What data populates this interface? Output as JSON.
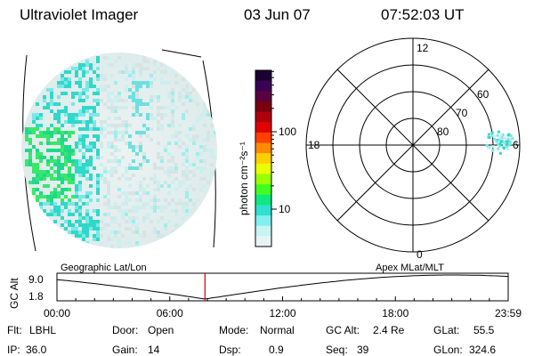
{
  "header": {
    "title": "Ultraviolet Imager",
    "date": "03 Jun 07",
    "time": "07:52:03 UT"
  },
  "colorbar": {
    "unit": "photon cm⁻²s⁻¹",
    "ticks": [
      "100",
      "10"
    ],
    "colors": [
      "#1a0033",
      "#3a0055",
      "#5c0040",
      "#7a0010",
      "#b00010",
      "#e00000",
      "#ff4000",
      "#ff8a00",
      "#ffd000",
      "#e8ff00",
      "#9aff00",
      "#40ff20",
      "#10e880",
      "#30e0d0",
      "#80f0f0",
      "#c8f4f4",
      "#e8f4f4"
    ]
  },
  "polar": {
    "labels": {
      "noon": "12",
      "midnight": "0",
      "dusk": "18",
      "dawn": "6"
    },
    "lat_labels": [
      "60",
      "70",
      "80"
    ]
  },
  "timeline": {
    "left_label": "Geographic Lat/Lon",
    "right_label": "Apex  MLat/MLT",
    "axis_title": "GC Alt",
    "y_max": "9.0",
    "y_min": "1.8",
    "x_ticks": [
      "00:00",
      "06:00",
      "12:00",
      "18:00",
      "23:59"
    ],
    "current_time_fraction": 0.328,
    "marker_color": "#d00000"
  },
  "status": {
    "rows": [
      [
        {
          "label": "Flt:",
          "value": "LBHL"
        },
        {
          "label": "Door:",
          "value": "Open"
        },
        {
          "label": "Mode:",
          "value": "Normal"
        },
        {
          "label": "GC Alt:",
          "value": "2.4 Re"
        },
        {
          "label": "GLat:",
          "value": "55.5"
        }
      ],
      [
        {
          "label": "IP:",
          "value": "36.0"
        },
        {
          "label": "Gain:",
          "value": "14"
        },
        {
          "label": "Dsp:",
          "value": "0.9"
        },
        {
          "label": "Seq:",
          "value": "39"
        },
        {
          "label": "GLon:",
          "value": "324.6"
        }
      ]
    ]
  }
}
